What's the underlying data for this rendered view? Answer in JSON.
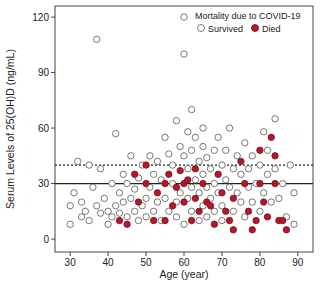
{
  "chart_data": {
    "type": "scatter",
    "x_label": "Age (year)",
    "y_label": "Serum Levels of 25(OH)D (ng/mL)",
    "legend_title": "Mortality due to COVID-19",
    "legend": "top-right",
    "xlim": [
      26,
      94
    ],
    "ylim": [
      -7,
      126
    ],
    "xticks": [
      30,
      40,
      50,
      60,
      70,
      80,
      90
    ],
    "yticks": [
      0,
      30,
      60,
      90,
      120
    ],
    "hlines": [
      {
        "value": 30,
        "line_style": "solid"
      },
      {
        "value": 40,
        "line_style": "dotted"
      }
    ],
    "series": [
      {
        "name": "Survived",
        "color": "#555555",
        "marker": "open-circle",
        "x": [
          30,
          30,
          31,
          32,
          33,
          33,
          34,
          35,
          35,
          36,
          37,
          37,
          38,
          38,
          39,
          40,
          40,
          41,
          41,
          42,
          42,
          43,
          43,
          44,
          44,
          45,
          45,
          46,
          46,
          47,
          47,
          48,
          48,
          49,
          49,
          50,
          50,
          51,
          51,
          52,
          52,
          53,
          53,
          54,
          54,
          55,
          55,
          56,
          56,
          57,
          57,
          58,
          58,
          58,
          59,
          59,
          60,
          60,
          60,
          60,
          61,
          61,
          61,
          62,
          62,
          62,
          62,
          63,
          63,
          64,
          64,
          64,
          65,
          65,
          65,
          65,
          66,
          66,
          66,
          67,
          67,
          68,
          68,
          68,
          69,
          69,
          70,
          70,
          70,
          71,
          71,
          72,
          72,
          73,
          73,
          74,
          74,
          75,
          75,
          76,
          76,
          77,
          77,
          78,
          78,
          79,
          80,
          80,
          81,
          81,
          82,
          82,
          83,
          84,
          84,
          85,
          86,
          87,
          88,
          89,
          89
        ],
        "values": [
          8,
          18,
          25,
          42,
          20,
          12,
          15,
          40,
          10,
          28,
          108,
          18,
          14,
          38,
          22,
          15,
          8,
          30,
          12,
          18,
          57,
          25,
          14,
          35,
          20,
          12,
          30,
          45,
          22,
          15,
          27,
          10,
          33,
          18,
          40,
          22,
          12,
          28,
          45,
          15,
          35,
          20,
          42,
          32,
          10,
          55,
          22,
          15,
          46,
          30,
          40,
          64,
          20,
          12,
          50,
          25,
          120,
          100,
          45,
          8,
          58,
          38,
          22,
          70,
          48,
          28,
          15,
          55,
          32,
          42,
          25,
          10,
          60,
          50,
          35,
          18,
          44,
          28,
          12,
          38,
          22,
          48,
          30,
          15,
          25,
          55,
          40,
          18,
          10,
          32,
          48,
          60,
          28,
          38,
          15,
          45,
          25,
          35,
          20,
          52,
          12,
          28,
          38,
          20,
          45,
          30,
          40,
          15,
          58,
          25,
          35,
          48,
          20,
          65,
          38,
          22,
          30,
          12,
          40,
          25,
          8
        ]
      },
      {
        "name": "Died",
        "color": "#b5172b",
        "marker": "filled-circle",
        "x": [
          43,
          45,
          47,
          48,
          50,
          50,
          52,
          53,
          55,
          55,
          56,
          57,
          58,
          59,
          60,
          60,
          61,
          62,
          63,
          63,
          64,
          65,
          66,
          67,
          68,
          69,
          70,
          71,
          72,
          73,
          73,
          75,
          76,
          77,
          78,
          79,
          80,
          80,
          81,
          82,
          83,
          84,
          84,
          85,
          86,
          87
        ],
        "values": [
          10,
          8,
          35,
          20,
          40,
          30,
          10,
          25,
          30,
          10,
          35,
          18,
          28,
          37,
          30,
          20,
          32,
          10,
          38,
          22,
          15,
          30,
          20,
          18,
          8,
          35,
          25,
          15,
          10,
          22,
          5,
          42,
          30,
          15,
          5,
          10,
          48,
          30,
          20,
          12,
          55,
          45,
          30,
          10,
          10,
          5
        ]
      }
    ]
  }
}
